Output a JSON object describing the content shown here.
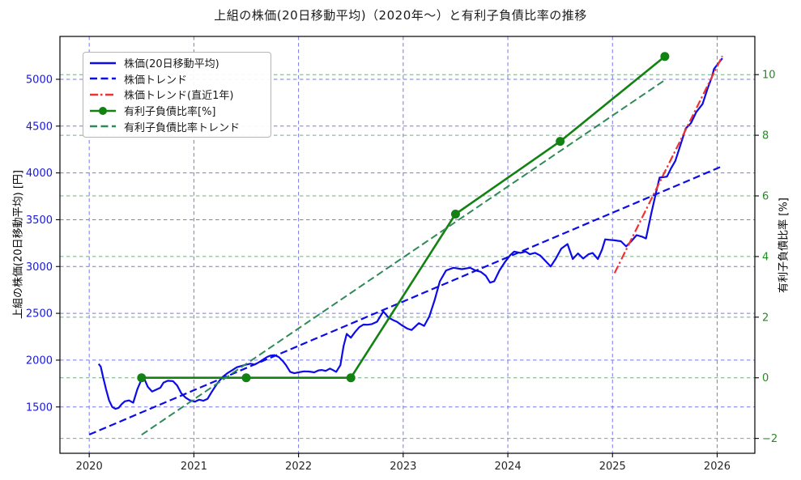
{
  "title": "上組の株価(20日移動平均)（2020年〜）と有利子負債比率の推移",
  "colors": {
    "price_blue": "#0c0ce8",
    "trend_red": "#ee3232",
    "ratio_green": "#128212",
    "ratio_trend_seagreen": "#2e8b57",
    "grid_blue": "#7979e8",
    "grid_green": "#74ad85",
    "spine_black": "#000000",
    "xtick_text": "#262626",
    "left_axis_text": "#1717dd",
    "right_axis_text": "#228b22"
  },
  "legend": {
    "items": [
      {
        "label": "株価(20日移動平均)",
        "color": "#0c0ce8",
        "style": "solid",
        "marker": false
      },
      {
        "label": "株価トレンド",
        "color": "#0c0ce8",
        "style": "dashed",
        "marker": false
      },
      {
        "label": "株価トレンド(直近1年)",
        "color": "#ee3232",
        "style": "dashdot",
        "marker": false
      },
      {
        "label": "有利子負債比率[%]",
        "color": "#128212",
        "style": "solid",
        "marker": true
      },
      {
        "label": "有利子負債比率トレンド",
        "color": "#2e8b57",
        "style": "dashed",
        "marker": false
      }
    ]
  },
  "chart_data": {
    "type": "line",
    "title": "上組の株価(20日移動平均)（2020年〜）と有利子負債比率の推移",
    "xlabel": "",
    "ylabel_left": "上組の株価(20日移動平均) [円]",
    "ylabel_right": "有利子負債比率 [%]",
    "grid": true,
    "legend_position": "upper left",
    "axes": {
      "x": {
        "range": [
          2019.72,
          2026.36
        ],
        "ticks": [
          2020,
          2021,
          2022,
          2023,
          2024,
          2025,
          2026
        ],
        "tick_labels": [
          "2020",
          "2021",
          "2022",
          "2023",
          "2024",
          "2025",
          "2026"
        ]
      },
      "y_left": {
        "range": [
          1005,
          5458
        ],
        "ticks": [
          1500,
          2000,
          2500,
          3000,
          3500,
          4000,
          4500,
          5000
        ],
        "tick_labels": [
          "1500",
          "2000",
          "2500",
          "3000",
          "3500",
          "4000",
          "4500",
          "5000"
        ],
        "color": "#1717dd"
      },
      "y_right": {
        "range": [
          -2.49,
          11.26
        ],
        "ticks": [
          -2,
          0,
          2,
          4,
          6,
          8,
          10
        ],
        "tick_labels": [
          "−2",
          "0",
          "2",
          "4",
          "6",
          "8",
          "10"
        ],
        "color": "#228b22"
      }
    },
    "series": [
      {
        "name": "株価(20日移動平均)",
        "axis": "left",
        "color": "#0c0ce8",
        "style": "solid",
        "width": 2.2,
        "marker": false,
        "x": [
          2020.09,
          2020.11,
          2020.13,
          2020.16,
          2020.19,
          2020.22,
          2020.25,
          2020.28,
          2020.31,
          2020.34,
          2020.38,
          2020.42,
          2020.46,
          2020.5,
          2020.53,
          2020.56,
          2020.6,
          2020.64,
          2020.68,
          2020.71,
          2020.75,
          2020.8,
          2020.84,
          2020.88,
          2020.92,
          2020.96,
          2021.01,
          2021.05,
          2021.09,
          2021.13,
          2021.17,
          2021.22,
          2021.27,
          2021.32,
          2021.37,
          2021.41,
          2021.45,
          2021.5,
          2021.54,
          2021.58,
          2021.62,
          2021.66,
          2021.7,
          2021.73,
          2021.77,
          2021.81,
          2021.85,
          2021.88,
          2021.92,
          2021.96,
          2022.0,
          2022.05,
          2022.1,
          2022.15,
          2022.19,
          2022.22,
          2022.26,
          2022.3,
          2022.33,
          2022.36,
          2022.4,
          2022.43,
          2022.46,
          2022.5,
          2022.54,
          2022.58,
          2022.62,
          2022.66,
          2022.7,
          2022.75,
          2022.81,
          2022.86,
          2022.9,
          2022.94,
          2022.99,
          2023.04,
          2023.08,
          2023.15,
          2023.2,
          2023.25,
          2023.3,
          2023.35,
          2023.41,
          2023.48,
          2023.56,
          2023.64,
          2023.69,
          2023.74,
          2023.79,
          2023.83,
          2023.87,
          2023.92,
          2023.97,
          2024.02,
          2024.06,
          2024.12,
          2024.17,
          2024.21,
          2024.26,
          2024.31,
          2024.36,
          2024.41,
          2024.46,
          2024.51,
          2024.57,
          2024.62,
          2024.67,
          2024.72,
          2024.77,
          2024.81,
          2024.86,
          2024.9,
          2024.93,
          2024.97,
          2025.02,
          2025.08,
          2025.13,
          2025.18,
          2025.23,
          2025.28,
          2025.32,
          2025.37,
          2025.42,
          2025.45,
          2025.49,
          2025.52,
          2025.56,
          2025.6,
          2025.65,
          2025.7,
          2025.75,
          2025.8,
          2025.86,
          2025.91,
          2025.95,
          2025.97,
          2026.05
        ],
        "y": [
          1960,
          1930,
          1830,
          1690,
          1570,
          1500,
          1480,
          1490,
          1530,
          1560,
          1570,
          1545,
          1690,
          1795,
          1790,
          1715,
          1665,
          1685,
          1705,
          1760,
          1780,
          1775,
          1730,
          1645,
          1600,
          1572,
          1557,
          1577,
          1566,
          1586,
          1660,
          1745,
          1817,
          1860,
          1895,
          1924,
          1936,
          1953,
          1962,
          1953,
          1976,
          2005,
          2034,
          2048,
          2054,
          2034,
          1990,
          1947,
          1875,
          1860,
          1870,
          1880,
          1878,
          1870,
          1890,
          1895,
          1885,
          1910,
          1893,
          1875,
          1947,
          2150,
          2280,
          2240,
          2300,
          2352,
          2380,
          2378,
          2385,
          2410,
          2520,
          2455,
          2430,
          2410,
          2370,
          2337,
          2322,
          2395,
          2366,
          2467,
          2640,
          2842,
          2958,
          2987,
          2972,
          2987,
          2958,
          2944,
          2900,
          2828,
          2842,
          2958,
          3045,
          3117,
          3160,
          3146,
          3160,
          3131,
          3146,
          3117,
          3059,
          3001,
          3088,
          3190,
          3240,
          3080,
          3140,
          3085,
          3130,
          3145,
          3080,
          3180,
          3290,
          3285,
          3280,
          3270,
          3215,
          3270,
          3335,
          3320,
          3300,
          3565,
          3810,
          3950,
          3955,
          3960,
          4050,
          4128,
          4302,
          4475,
          4533,
          4649,
          4735,
          4908,
          5024,
          5110,
          5225
        ]
      },
      {
        "name": "株価トレンド",
        "axis": "left",
        "color": "#0c0ce8",
        "style": "dashed",
        "width": 2.2,
        "marker": false,
        "x": [
          2020.0,
          2026.05
        ],
        "y": [
          1205,
          4072
        ]
      },
      {
        "name": "株価トレンド(直近1年)",
        "axis": "left",
        "color": "#ee3232",
        "style": "dashdot",
        "width": 2.2,
        "marker": false,
        "x": [
          2025.02,
          2026.05
        ],
        "y": [
          2930,
          5250
        ]
      },
      {
        "name": "有利子負債比率[%]",
        "axis": "right",
        "color": "#128212",
        "style": "solid",
        "width": 2.6,
        "marker": true,
        "x": [
          2020.5,
          2021.5,
          2022.5,
          2023.5,
          2024.5,
          2025.5
        ],
        "y": [
          0.0,
          0.0,
          0.0,
          5.4,
          7.8,
          10.6
        ]
      },
      {
        "name": "有利子負債比率トレンド",
        "axis": "right",
        "color": "#2e8b57",
        "style": "dashed",
        "width": 2.0,
        "marker": false,
        "x": [
          2020.5,
          2025.5
        ],
        "y": [
          -1.88,
          9.82
        ]
      }
    ]
  }
}
